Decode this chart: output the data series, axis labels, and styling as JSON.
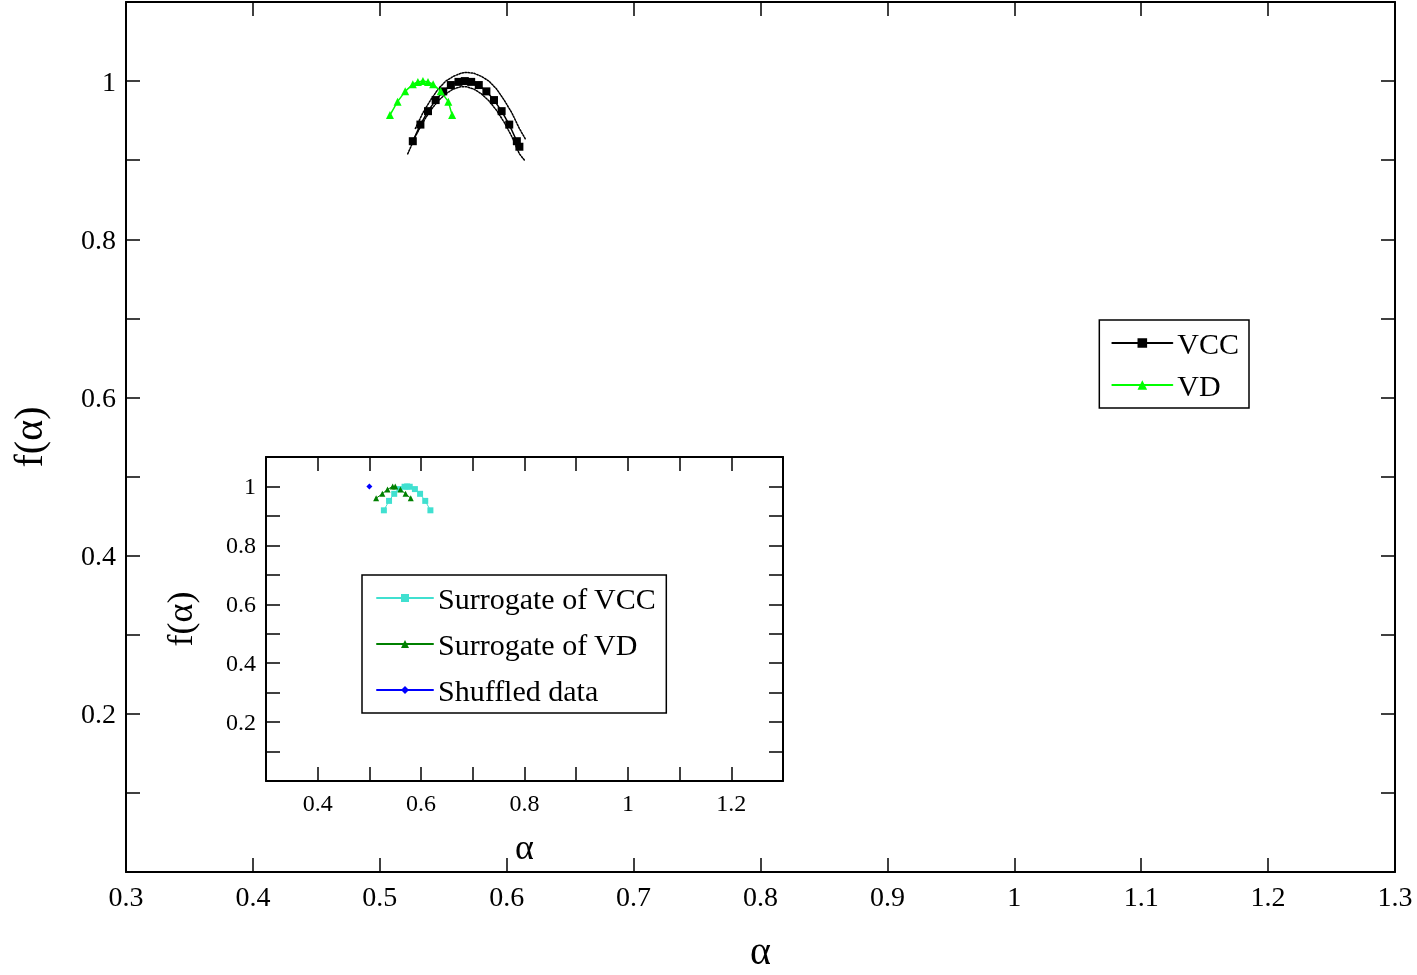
{
  "chart_data": [
    {
      "type": "line",
      "xlabel": "α",
      "ylabel": "f(α)",
      "xlim": [
        0.3,
        1.3
      ],
      "ylim": [
        0,
        1.1
      ],
      "xticks": [
        0.3,
        0.4,
        0.5,
        0.6,
        0.7,
        0.8,
        0.9,
        1,
        1.1,
        1.2,
        1.3
      ],
      "yticks": [
        {
          "value": 0.1,
          "label": null
        },
        0.2,
        {
          "value": 0.3,
          "label": null
        },
        0.4,
        {
          "value": 0.5,
          "label": null
        },
        0.6,
        {
          "value": 0.7,
          "label": null
        },
        0.8,
        {
          "value": 0.9,
          "label": null
        },
        1
      ],
      "grid": false,
      "legend": "right",
      "line_style": "solid",
      "series": [
        {
          "name": "VCC",
          "color": "#000000",
          "marker": "square",
          "x": [
            0.526,
            0.532,
            0.538,
            0.544,
            0.55,
            0.556,
            0.562,
            0.567,
            0.572,
            0.578,
            0.584,
            0.59,
            0.596,
            0.602,
            0.608,
            0.61
          ],
          "values": [
            0.924,
            0.945,
            0.962,
            0.976,
            0.987,
            0.995,
            0.999,
            1,
            0.999,
            0.995,
            0.987,
            0.976,
            0.962,
            0.945,
            0.924,
            0.917
          ]
        },
        {
          "color": "#000000",
          "marker": "none",
          "line_style": "dotted",
          "x": [
            0.522,
            0.528,
            0.534,
            0.54,
            0.546,
            0.552,
            0.558,
            0.564,
            0.568,
            0.574,
            0.58,
            0.586,
            0.592,
            0.598,
            0.604,
            0.61,
            0.614
          ],
          "values": [
            0.908,
            0.93,
            0.948,
            0.963,
            0.975,
            0.984,
            0.99,
            0.993,
            0.993,
            0.99,
            0.984,
            0.975,
            0.963,
            0.948,
            0.93,
            0.908,
            0.9
          ]
        },
        {
          "color": "#000000",
          "marker": "none",
          "line_style": "dotted",
          "x": [
            0.528,
            0.534,
            0.54,
            0.546,
            0.552,
            0.558,
            0.564,
            0.568,
            0.574,
            0.58,
            0.586,
            0.592,
            0.598,
            0.604,
            0.61,
            0.615
          ],
          "values": [
            0.94,
            0.96,
            0.976,
            0.99,
            1,
            1.006,
            1.01,
            1.011,
            1.01,
            1.006,
            1,
            0.99,
            0.976,
            0.96,
            0.94,
            0.926
          ]
        },
        {
          "name": "VD",
          "color": "#00ff00",
          "marker": "triangle",
          "x": [
            0.508,
            0.514,
            0.52,
            0.526,
            0.53,
            0.534,
            0.538,
            0.542,
            0.548,
            0.554,
            0.557
          ],
          "values": [
            0.957,
            0.974,
            0.987,
            0.996,
            0.999,
            1,
            0.999,
            0.996,
            0.987,
            0.974,
            0.957
          ]
        }
      ]
    },
    {
      "type": "line",
      "xlabel": "α",
      "ylabel": "f(α)",
      "xlim": [
        0.3,
        1.3
      ],
      "ylim": [
        0,
        1.1
      ],
      "xticks": [
        {
          "value": 0.3,
          "label": null
        },
        0.4,
        {
          "value": 0.5,
          "label": null
        },
        0.6,
        {
          "value": 0.7,
          "label": null
        },
        0.8,
        {
          "value": 0.9,
          "label": null
        },
        1,
        {
          "value": 1.1,
          "label": null
        },
        1.2,
        {
          "value": 1.3,
          "label": null
        }
      ],
      "yticks": [
        {
          "value": 0.1,
          "label": null
        },
        0.2,
        {
          "value": 0.3,
          "label": null
        },
        0.4,
        {
          "value": 0.5,
          "label": null
        },
        0.6,
        {
          "value": 0.7,
          "label": null
        },
        0.8,
        {
          "value": 0.9,
          "label": null
        },
        1
      ],
      "grid": false,
      "legend": "center",
      "line_style": "solid",
      "series": [
        {
          "name": "Surrogate of VCC",
          "color": "#40e0d0",
          "marker": "square",
          "x": [
            0.528,
            0.538,
            0.548,
            0.558,
            0.568,
            0.573,
            0.578,
            0.588,
            0.598,
            0.608,
            0.618
          ],
          "values": [
            0.919,
            0.951,
            0.975,
            0.991,
            0.999,
            1,
            0.999,
            0.991,
            0.975,
            0.951,
            0.919
          ]
        },
        {
          "name": "Surrogate of VD",
          "color": "#008000",
          "marker": "triangle",
          "x": [
            0.513,
            0.525,
            0.535,
            0.545,
            0.55,
            0.56,
            0.57,
            0.58
          ],
          "values": [
            0.96,
            0.975,
            0.99,
            1,
            1,
            0.99,
            0.975,
            0.96
          ]
        },
        {
          "name": "Shuffled data",
          "color": "#0000ff",
          "marker": "diamond",
          "x": [
            0.5
          ],
          "values": [
            1
          ]
        }
      ]
    }
  ]
}
